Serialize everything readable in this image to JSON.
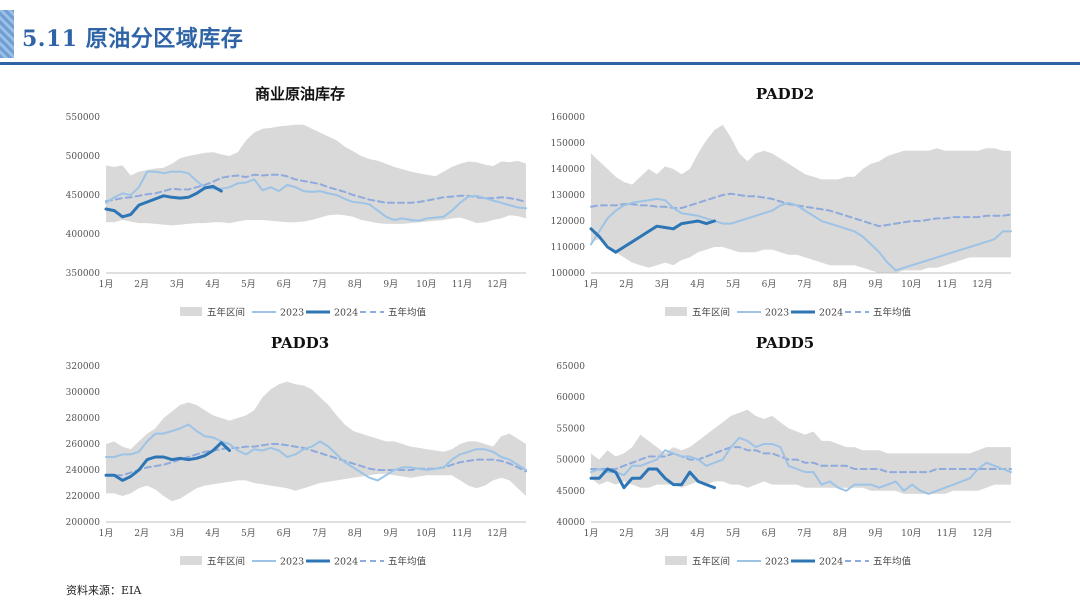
{
  "header": {
    "title": "5.11 原油分区域库存"
  },
  "source": "资料来源：EIA",
  "legend": {
    "band": "五年区间",
    "y2023": "2023",
    "y2024": "2024",
    "avg": "五年均值"
  },
  "colors": {
    "band": "#d9d9d9",
    "y2023": "#9dc3e6",
    "y2024": "#2e75b6",
    "avg": "#8faadc",
    "accent": "#2e63a6"
  },
  "chart_data": [
    {
      "id": "commercial",
      "type": "line",
      "title": "商业原油库存",
      "x_ticks": [
        "1月",
        "2月",
        "3月",
        "4月",
        "5月",
        "6月",
        "7月",
        "8月",
        "9月",
        "10月",
        "11月",
        "12月"
      ],
      "weeks": 52,
      "ylim": [
        350000,
        550000
      ],
      "yticks": [
        350000,
        400000,
        450000,
        500000,
        550000
      ],
      "band_max": [
        488000,
        486000,
        488000,
        475000,
        480000,
        482000,
        484000,
        485000,
        490000,
        497000,
        500000,
        502000,
        504000,
        505000,
        502000,
        500000,
        505000,
        520000,
        530000,
        535000,
        536000,
        538000,
        539000,
        540000,
        540000,
        535000,
        530000,
        525000,
        520000,
        512000,
        506000,
        500000,
        496000,
        494000,
        490000,
        486000,
        483000,
        480000,
        478000,
        476000,
        474000,
        480000,
        486000,
        490000,
        493000,
        492000,
        489000,
        487000,
        493000,
        492000,
        494000,
        490000
      ],
      "band_min": [
        415000,
        415000,
        418000,
        416000,
        414000,
        414000,
        413000,
        412000,
        411000,
        412000,
        413000,
        414000,
        414000,
        415000,
        415000,
        414000,
        416000,
        418000,
        418000,
        418000,
        417000,
        416000,
        415000,
        415000,
        416000,
        418000,
        421000,
        424000,
        425000,
        424000,
        422000,
        418000,
        416000,
        414000,
        413000,
        413000,
        413000,
        414000,
        415000,
        416000,
        417000,
        418000,
        420000,
        421000,
        418000,
        414000,
        415000,
        418000,
        420000,
        424000,
        423000,
        420000
      ],
      "series": [
        {
          "name": "2023",
          "key": "y2023",
          "values": [
            440000,
            447000,
            452000,
            450000,
            460000,
            480000,
            480000,
            478000,
            480000,
            480000,
            478000,
            468000,
            460000,
            458000,
            458000,
            460000,
            465000,
            466000,
            470000,
            456000,
            460000,
            455000,
            463000,
            460000,
            455000,
            454000,
            455000,
            452000,
            450000,
            445000,
            441000,
            440000,
            438000,
            430000,
            422000,
            418000,
            420000,
            418000,
            417000,
            420000,
            421000,
            422000,
            430000,
            440000,
            448000,
            449000,
            446000,
            443000,
            440000,
            437000,
            434000,
            433000
          ]
        },
        {
          "name": "2024",
          "key": "y2024",
          "values": [
            432000,
            430000,
            422000,
            425000,
            437000,
            441000,
            445000,
            449000,
            447000,
            446000,
            447000,
            452000,
            459000,
            461000,
            455000
          ]
        },
        {
          "name": "五年均值",
          "key": "avg",
          "values": [
            442000,
            444000,
            446000,
            447000,
            449000,
            451000,
            452000,
            455000,
            458000,
            457000,
            457000,
            460000,
            463000,
            467000,
            472000,
            474000,
            475000,
            473000,
            476000,
            475000,
            476000,
            476000,
            474000,
            470000,
            468000,
            466000,
            464000,
            460000,
            457000,
            454000,
            450000,
            447000,
            444000,
            442000,
            440000,
            440000,
            440000,
            440000,
            441000,
            443000,
            445000,
            447000,
            448000,
            449000,
            449000,
            447000,
            446000,
            446000,
            447000,
            446000,
            444000,
            441000
          ]
        }
      ]
    },
    {
      "id": "padd2",
      "type": "line",
      "title": "PADD2",
      "x_ticks": [
        "1月",
        "2月",
        "3月",
        "4月",
        "5月",
        "6月",
        "7月",
        "8月",
        "9月",
        "10月",
        "11月",
        "12月"
      ],
      "weeks": 52,
      "ylim": [
        100000,
        160000
      ],
      "yticks": [
        100000,
        110000,
        120000,
        130000,
        140000,
        150000,
        160000
      ],
      "band_max": [
        146000,
        143000,
        140000,
        137000,
        135000,
        134000,
        137000,
        140000,
        138000,
        141000,
        140000,
        138000,
        140000,
        146000,
        151000,
        155000,
        157000,
        152000,
        146000,
        143000,
        146000,
        147000,
        146000,
        144000,
        142000,
        140000,
        138000,
        137000,
        136000,
        136000,
        136000,
        137000,
        137000,
        140000,
        142000,
        143000,
        145000,
        146000,
        147000,
        147000,
        147000,
        147000,
        148000,
        147000,
        147000,
        147000,
        147000,
        147000,
        148000,
        148000,
        147000,
        147000
      ],
      "band_min": [
        112000,
        113000,
        111000,
        108000,
        106000,
        104000,
        103000,
        102000,
        103000,
        104000,
        103000,
        105000,
        106000,
        108000,
        109000,
        110000,
        110000,
        109000,
        108000,
        108000,
        108000,
        109000,
        109000,
        108000,
        107000,
        107000,
        106000,
        105000,
        104000,
        103000,
        103000,
        103000,
        103000,
        102000,
        101000,
        100000,
        100000,
        100000,
        101000,
        101000,
        101000,
        102000,
        102000,
        103000,
        104000,
        105000,
        106000,
        106000,
        106000,
        106000,
        106000,
        106000
      ],
      "series": [
        {
          "name": "2023",
          "key": "y2023",
          "values": [
            111000,
            116000,
            121000,
            124000,
            126000,
            127000,
            127500,
            128000,
            128500,
            128000,
            125000,
            123000,
            122500,
            122000,
            121000,
            120000,
            119000,
            119000,
            120000,
            121000,
            122000,
            123000,
            124000,
            126000,
            127000,
            126000,
            124000,
            122000,
            120000,
            119000,
            118000,
            117000,
            116000,
            114000,
            111000,
            108000,
            104000,
            101000,
            102000,
            103000,
            104000,
            105000,
            106000,
            107000,
            108000,
            109000,
            110000,
            111000,
            112000,
            113000,
            116000,
            116000
          ]
        },
        {
          "name": "2024",
          "key": "y2024",
          "values": [
            117000,
            114000,
            110000,
            108000,
            110000,
            112000,
            114000,
            116000,
            118000,
            117500,
            117000,
            119000,
            119500,
            120000,
            119000,
            120000
          ]
        },
        {
          "name": "五年均值",
          "key": "avg",
          "values": [
            125500,
            126000,
            126000,
            126000,
            126500,
            126500,
            126000,
            126000,
            125500,
            125500,
            125000,
            125000,
            126000,
            127000,
            128000,
            129000,
            130000,
            130500,
            130000,
            129500,
            129500,
            129000,
            128500,
            127500,
            126500,
            126000,
            125500,
            125000,
            124500,
            124000,
            123000,
            122000,
            121000,
            120000,
            119000,
            118000,
            118500,
            119000,
            119500,
            120000,
            120000,
            120500,
            121000,
            121000,
            121500,
            121500,
            121500,
            121500,
            122000,
            122000,
            122000,
            122500
          ]
        }
      ]
    },
    {
      "id": "padd3",
      "type": "line",
      "title": "PADD3",
      "x_ticks": [
        "1月",
        "2月",
        "3月",
        "4月",
        "5月",
        "6月",
        "7月",
        "8月",
        "9月",
        "10月",
        "11月",
        "12月"
      ],
      "weeks": 52,
      "ylim": [
        200000,
        320000
      ],
      "yticks": [
        200000,
        220000,
        240000,
        260000,
        280000,
        300000,
        320000
      ],
      "band_max": [
        260000,
        262000,
        258000,
        256000,
        262000,
        268000,
        272000,
        280000,
        285000,
        290000,
        292000,
        290000,
        286000,
        282000,
        280000,
        278000,
        280000,
        282000,
        286000,
        296000,
        302000,
        306000,
        308000,
        306000,
        305000,
        302000,
        296000,
        290000,
        282000,
        275000,
        270000,
        268000,
        266000,
        264000,
        262000,
        262000,
        260000,
        258000,
        257000,
        256000,
        255000,
        254000,
        256000,
        260000,
        262000,
        262000,
        260000,
        258000,
        266000,
        268000,
        264000,
        260000
      ],
      "band_min": [
        222000,
        222000,
        220000,
        222000,
        226000,
        228000,
        225000,
        220000,
        216000,
        218000,
        222000,
        226000,
        228000,
        229000,
        230000,
        231000,
        232000,
        232000,
        230000,
        229000,
        228000,
        227000,
        226000,
        224000,
        226000,
        228000,
        230000,
        231000,
        232000,
        233000,
        234000,
        235000,
        236000,
        237000,
        237000,
        236000,
        235000,
        234000,
        235000,
        236000,
        236000,
        236000,
        236000,
        232000,
        228000,
        226000,
        228000,
        232000,
        234000,
        232000,
        226000,
        220000
      ],
      "series": [
        {
          "name": "2023",
          "key": "y2023",
          "values": [
            250000,
            250000,
            252000,
            252000,
            254000,
            262000,
            268000,
            268000,
            270000,
            272000,
            275000,
            270000,
            266000,
            265000,
            262000,
            260000,
            255000,
            252000,
            256000,
            255000,
            257000,
            255000,
            250000,
            252000,
            256000,
            258000,
            262000,
            258000,
            252000,
            246000,
            242000,
            238000,
            234000,
            232000,
            236000,
            240000,
            242000,
            242000,
            241000,
            240000,
            241000,
            242000,
            248000,
            252000,
            254000,
            256000,
            256000,
            254000,
            250000,
            248000,
            244000,
            240000
          ]
        },
        {
          "name": "2024",
          "key": "y2024",
          "values": [
            236000,
            236000,
            232000,
            235000,
            240000,
            248000,
            250000,
            250000,
            248000,
            249000,
            248000,
            249000,
            251000,
            255000,
            261000,
            255000
          ]
        },
        {
          "name": "五年均值",
          "key": "avg",
          "values": [
            236000,
            236000,
            236000,
            238000,
            240000,
            242000,
            243000,
            244000,
            246000,
            248000,
            250000,
            252000,
            254000,
            255000,
            256000,
            257000,
            257000,
            258000,
            258000,
            259000,
            260000,
            260000,
            259000,
            258000,
            257000,
            255000,
            253000,
            251000,
            249000,
            247000,
            245000,
            243000,
            241000,
            240000,
            240000,
            240000,
            240000,
            240000,
            241000,
            241000,
            241000,
            242000,
            244000,
            246000,
            247000,
            248000,
            248000,
            248000,
            247000,
            245000,
            242000,
            239000
          ]
        }
      ]
    },
    {
      "id": "padd5",
      "type": "line",
      "title": "PADD5",
      "x_ticks": [
        "1月",
        "2月",
        "3月",
        "4月",
        "5月",
        "6月",
        "7月",
        "8月",
        "9月",
        "10月",
        "11月",
        "12月"
      ],
      "weeks": 52,
      "ylim": [
        40000,
        65000
      ],
      "yticks": [
        40000,
        45000,
        50000,
        55000,
        60000,
        65000
      ],
      "band_max": [
        51000,
        50000,
        51500,
        50500,
        51000,
        52000,
        54000,
        53000,
        52000,
        51000,
        52000,
        51500,
        52000,
        53000,
        54000,
        55000,
        56000,
        57000,
        57500,
        58000,
        57000,
        56500,
        57000,
        56000,
        55000,
        54500,
        54000,
        54500,
        53000,
        53000,
        52500,
        52000,
        52000,
        51500,
        51500,
        51500,
        51000,
        51000,
        51000,
        51000,
        51000,
        51000,
        51000,
        51000,
        51000,
        51000,
        51000,
        51500,
        52000,
        52000,
        52000,
        52000
      ],
      "band_min": [
        47000,
        46000,
        46500,
        46000,
        46500,
        46000,
        45500,
        45500,
        46000,
        46000,
        46000,
        45500,
        46000,
        46500,
        46000,
        46500,
        46500,
        46000,
        46000,
        45500,
        46000,
        46500,
        46000,
        46000,
        46000,
        46000,
        45500,
        45500,
        45500,
        45500,
        45500,
        45500,
        45500,
        45500,
        45000,
        45000,
        45000,
        45000,
        44500,
        44500,
        44500,
        44500,
        44500,
        44500,
        45000,
        45000,
        45000,
        45000,
        45500,
        46000,
        46000,
        46000
      ],
      "series": [
        {
          "name": "2023",
          "key": "y2023",
          "values": [
            48000,
            48500,
            48000,
            48000,
            47500,
            49000,
            49000,
            49500,
            50000,
            51500,
            51000,
            50500,
            50500,
            50000,
            49000,
            49500,
            50000,
            52000,
            53500,
            53000,
            52000,
            52500,
            52500,
            52000,
            49000,
            48500,
            48000,
            48000,
            46000,
            46500,
            45500,
            45000,
            46000,
            46000,
            46000,
            45500,
            46000,
            46500,
            45000,
            46000,
            45000,
            44500,
            45000,
            45500,
            46000,
            46500,
            47000,
            48500,
            49500,
            49000,
            48500,
            48000
          ]
        },
        {
          "name": "2024",
          "key": "y2024",
          "values": [
            47000,
            47000,
            48500,
            48000,
            45500,
            47000,
            47000,
            48500,
            48500,
            47000,
            46000,
            46000,
            48000,
            46500,
            46000,
            45500
          ]
        },
        {
          "name": "五年均值",
          "key": "avg",
          "values": [
            48500,
            48500,
            48500,
            48500,
            49000,
            49500,
            50000,
            50500,
            50500,
            50500,
            51000,
            50500,
            50000,
            50000,
            50500,
            51000,
            51500,
            52000,
            52000,
            51500,
            51500,
            51000,
            51000,
            50500,
            50000,
            50000,
            49500,
            49500,
            49000,
            49000,
            49000,
            49000,
            48500,
            48500,
            48500,
            48500,
            48000,
            48000,
            48000,
            48000,
            48000,
            48000,
            48500,
            48500,
            48500,
            48500,
            48500,
            48500,
            48500,
            48500,
            48500,
            48500
          ]
        }
      ]
    }
  ]
}
